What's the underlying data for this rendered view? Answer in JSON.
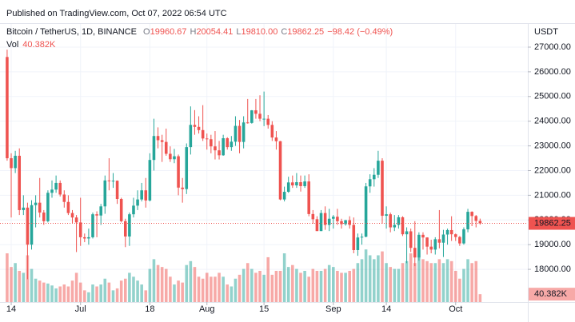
{
  "header": "Published on TradingView.com, Oct 07, 2022 06:54 UTC",
  "chart_data": {
    "type": "candlestick",
    "title": "Bitcoin / TetherUS, 1D, BINANCE",
    "readout": [
      {
        "key": "O",
        "text": "19960.67"
      },
      {
        "key": "H",
        "text": "20054.41"
      },
      {
        "key": "L",
        "text": "19810.00"
      },
      {
        "key": "C",
        "text": "19862.25"
      }
    ],
    "change": "−98.42 (−0.49%)",
    "volume_label": "Vol",
    "volume_last_label": "40.382K",
    "y_axis_label": "USDT",
    "up_color": "#26a69a",
    "down_color": "#ef5350",
    "grid": true,
    "ylim": [
      16676,
      27938
    ],
    "yticks": [
      {
        "value": 18000,
        "label": "18000.00"
      },
      {
        "value": 19000,
        "label": "19000.00"
      },
      {
        "value": 20000,
        "label": "20000.00"
      },
      {
        "value": 21000,
        "label": "21000.00"
      },
      {
        "value": 22000,
        "label": "22000.00"
      },
      {
        "value": 23000,
        "label": "23000.00"
      },
      {
        "value": 24000,
        "label": "24000.00"
      },
      {
        "value": 25000,
        "label": "25000.00"
      },
      {
        "value": 26000,
        "label": "26000.00"
      },
      {
        "value": 27000,
        "label": "27000.00"
      }
    ],
    "xlim": [
      -1.75,
      127.7
    ],
    "xticks": [
      {
        "value": 1,
        "label": "14"
      },
      {
        "value": 18,
        "label": "Jul"
      },
      {
        "value": 35,
        "label": "18"
      },
      {
        "value": 49,
        "label": "Aug"
      },
      {
        "value": 63,
        "label": "15"
      },
      {
        "value": 80,
        "label": "Sep"
      },
      {
        "value": 93,
        "label": "14"
      },
      {
        "value": 110,
        "label": "Oct"
      }
    ],
    "volume_ylim": [
      0,
      320
    ],
    "open": [
      26600,
      22500,
      22100,
      22600,
      20400,
      20500,
      19000,
      20600,
      20700,
      20300,
      19950,
      21100,
      21230,
      21500,
      21030,
      20730,
      20280,
      20100,
      19900,
      19300,
      19250,
      19300,
      20230,
      20180,
      20550,
      21600,
      21580,
      21590,
      20850,
      19950,
      19330,
      20230,
      20580,
      20830,
      21200,
      20790,
      22430,
      23400,
      23230,
      23160,
      22680,
      22460,
      22580,
      21310,
      21250,
      22950,
      23850,
      23770,
      23640,
      23300,
      23270,
      22980,
      22820,
      22620,
      23310,
      22950,
      23170,
      23810,
      23160,
      23950,
      23930,
      24440,
      24300,
      24100,
      24100,
      23850,
      23340,
      23190,
      20830,
      21140,
      21520,
      21400,
      21530,
      21370,
      21560,
      20240,
      20030,
      19550,
      20280,
      19800,
      20050,
      20130,
      19950,
      19830,
      19990,
      19800,
      18780,
      19290,
      19320,
      21360,
      21650,
      21830,
      22400,
      20170,
      20230,
      19700,
      19800,
      20110,
      19420,
      19540,
      18870,
      18480,
      19400,
      19290,
      18920,
      18800,
      19220,
      19080,
      19410,
      19590,
      19420,
      19310,
      19050,
      19620,
      20330,
      20160,
      19960.67
    ],
    "high": [
      26900,
      22700,
      22800,
      22900,
      21000,
      20700,
      20800,
      21000,
      21700,
      20400,
      21200,
      21600,
      21800,
      21600,
      21200,
      21000,
      20400,
      20200,
      20900,
      19450,
      19650,
      20300,
      20350,
      20650,
      21800,
      22500,
      21900,
      21600,
      20900,
      20050,
      20300,
      20900,
      21200,
      21500,
      21700,
      22700,
      24100,
      23750,
      23450,
      23700,
      22980,
      22880,
      22650,
      21700,
      23100,
      24600,
      24450,
      24200,
      24650,
      23500,
      23450,
      23600,
      23200,
      23450,
      23350,
      23400,
      24200,
      24050,
      24200,
      24900,
      24450,
      24900,
      25050,
      25200,
      24250,
      24000,
      23600,
      23200,
      21350,
      21750,
      21800,
      21900,
      21800,
      21800,
      21850,
      20400,
      20150,
      20400,
      20550,
      20450,
      20200,
      20450,
      20050,
      20000,
      20150,
      20100,
      19450,
      19450,
      21500,
      21850,
      22100,
      22800,
      22500,
      20550,
      20300,
      20200,
      20200,
      20150,
      19700,
      19650,
      19950,
      19500,
      19500,
      19300,
      19200,
      19300,
      20400,
      19600,
      19650,
      20150,
      19450,
      19350,
      19700,
      20450,
      20350,
      20200,
      20054.41
    ],
    "low": [
      22400,
      20100,
      21900,
      20200,
      20200,
      17600,
      18800,
      19700,
      20100,
      19800,
      19900,
      20900,
      21100,
      20950,
      20500,
      20200,
      19850,
      18700,
      18950,
      19100,
      19000,
      19250,
      19300,
      19800,
      20250,
      21200,
      21300,
      20650,
      19900,
      18900,
      18950,
      20100,
      20400,
      20750,
      20500,
      20750,
      22000,
      22900,
      22350,
      22600,
      22350,
      22300,
      21000,
      20700,
      21050,
      22650,
      23450,
      23500,
      23200,
      22850,
      22700,
      22450,
      22450,
      22600,
      22850,
      22800,
      23000,
      22700,
      22900,
      23900,
      23900,
      24100,
      24000,
      23800,
      23700,
      23200,
      22850,
      20800,
      20750,
      21100,
      21300,
      21300,
      21150,
      21300,
      20150,
      19850,
      19550,
      19550,
      19600,
      19550,
      19650,
      19800,
      19650,
      19770,
      19650,
      18650,
      18550,
      19000,
      19300,
      21100,
      21350,
      21700,
      19850,
      19650,
      19500,
      19550,
      19650,
      19350,
      18250,
      18700,
      18130,
      18350,
      18800,
      18600,
      18650,
      18600,
      18850,
      18500,
      19000,
      19150,
      19150,
      18950,
      19000,
      19500,
      19750,
      19700,
      19810
    ],
    "close": [
      22500,
      22100,
      22600,
      20400,
      20500,
      19000,
      20600,
      20700,
      20300,
      19950,
      21100,
      21230,
      21500,
      21030,
      20730,
      20280,
      20100,
      19900,
      19300,
      19250,
      19300,
      20230,
      20180,
      20550,
      21600,
      21580,
      21590,
      20850,
      19950,
      19330,
      20230,
      20580,
      20830,
      21200,
      20790,
      22430,
      23400,
      23230,
      23160,
      22680,
      22460,
      22580,
      21310,
      21250,
      22950,
      23850,
      23770,
      23640,
      23300,
      23270,
      22980,
      22820,
      22620,
      23310,
      22950,
      23170,
      23810,
      23160,
      23950,
      23930,
      24440,
      24300,
      24100,
      24100,
      23850,
      23340,
      23190,
      20830,
      21140,
      21520,
      21400,
      21530,
      21370,
      21560,
      20240,
      20030,
      19550,
      20280,
      19800,
      20050,
      20130,
      19950,
      19830,
      19990,
      19800,
      18780,
      19290,
      19320,
      21360,
      21650,
      21830,
      22400,
      20170,
      20230,
      19700,
      19800,
      20110,
      19420,
      19540,
      18870,
      18480,
      19400,
      19290,
      18920,
      18800,
      19220,
      19080,
      19410,
      19590,
      19420,
      19310,
      19050,
      19620,
      20330,
      20160,
      19960.67,
      19862.25
    ],
    "volume": [
      250,
      180,
      200,
      160,
      150,
      240,
      170,
      120,
      110,
      100,
      95,
      85,
      70,
      80,
      90,
      80,
      110,
      150,
      100,
      60,
      50,
      90,
      80,
      90,
      120,
      100,
      60,
      70,
      110,
      120,
      150,
      130,
      110,
      90,
      60,
      170,
      220,
      190,
      180,
      170,
      130,
      90,
      110,
      100,
      190,
      210,
      180,
      130,
      120,
      150,
      130,
      130,
      150,
      130,
      90,
      80,
      120,
      140,
      170,
      200,
      170,
      150,
      160,
      140,
      230,
      140,
      160,
      160,
      250,
      180,
      190,
      170,
      150,
      160,
      130,
      170,
      160,
      160,
      170,
      190,
      180,
      160,
      150,
      150,
      160,
      170,
      200,
      220,
      270,
      240,
      220,
      240,
      260,
      200,
      180,
      170,
      170,
      200,
      210,
      250,
      200,
      270,
      220,
      210,
      200,
      200,
      220,
      200,
      220,
      210,
      160,
      120,
      170,
      220,
      200,
      210,
      40.382
    ]
  }
}
